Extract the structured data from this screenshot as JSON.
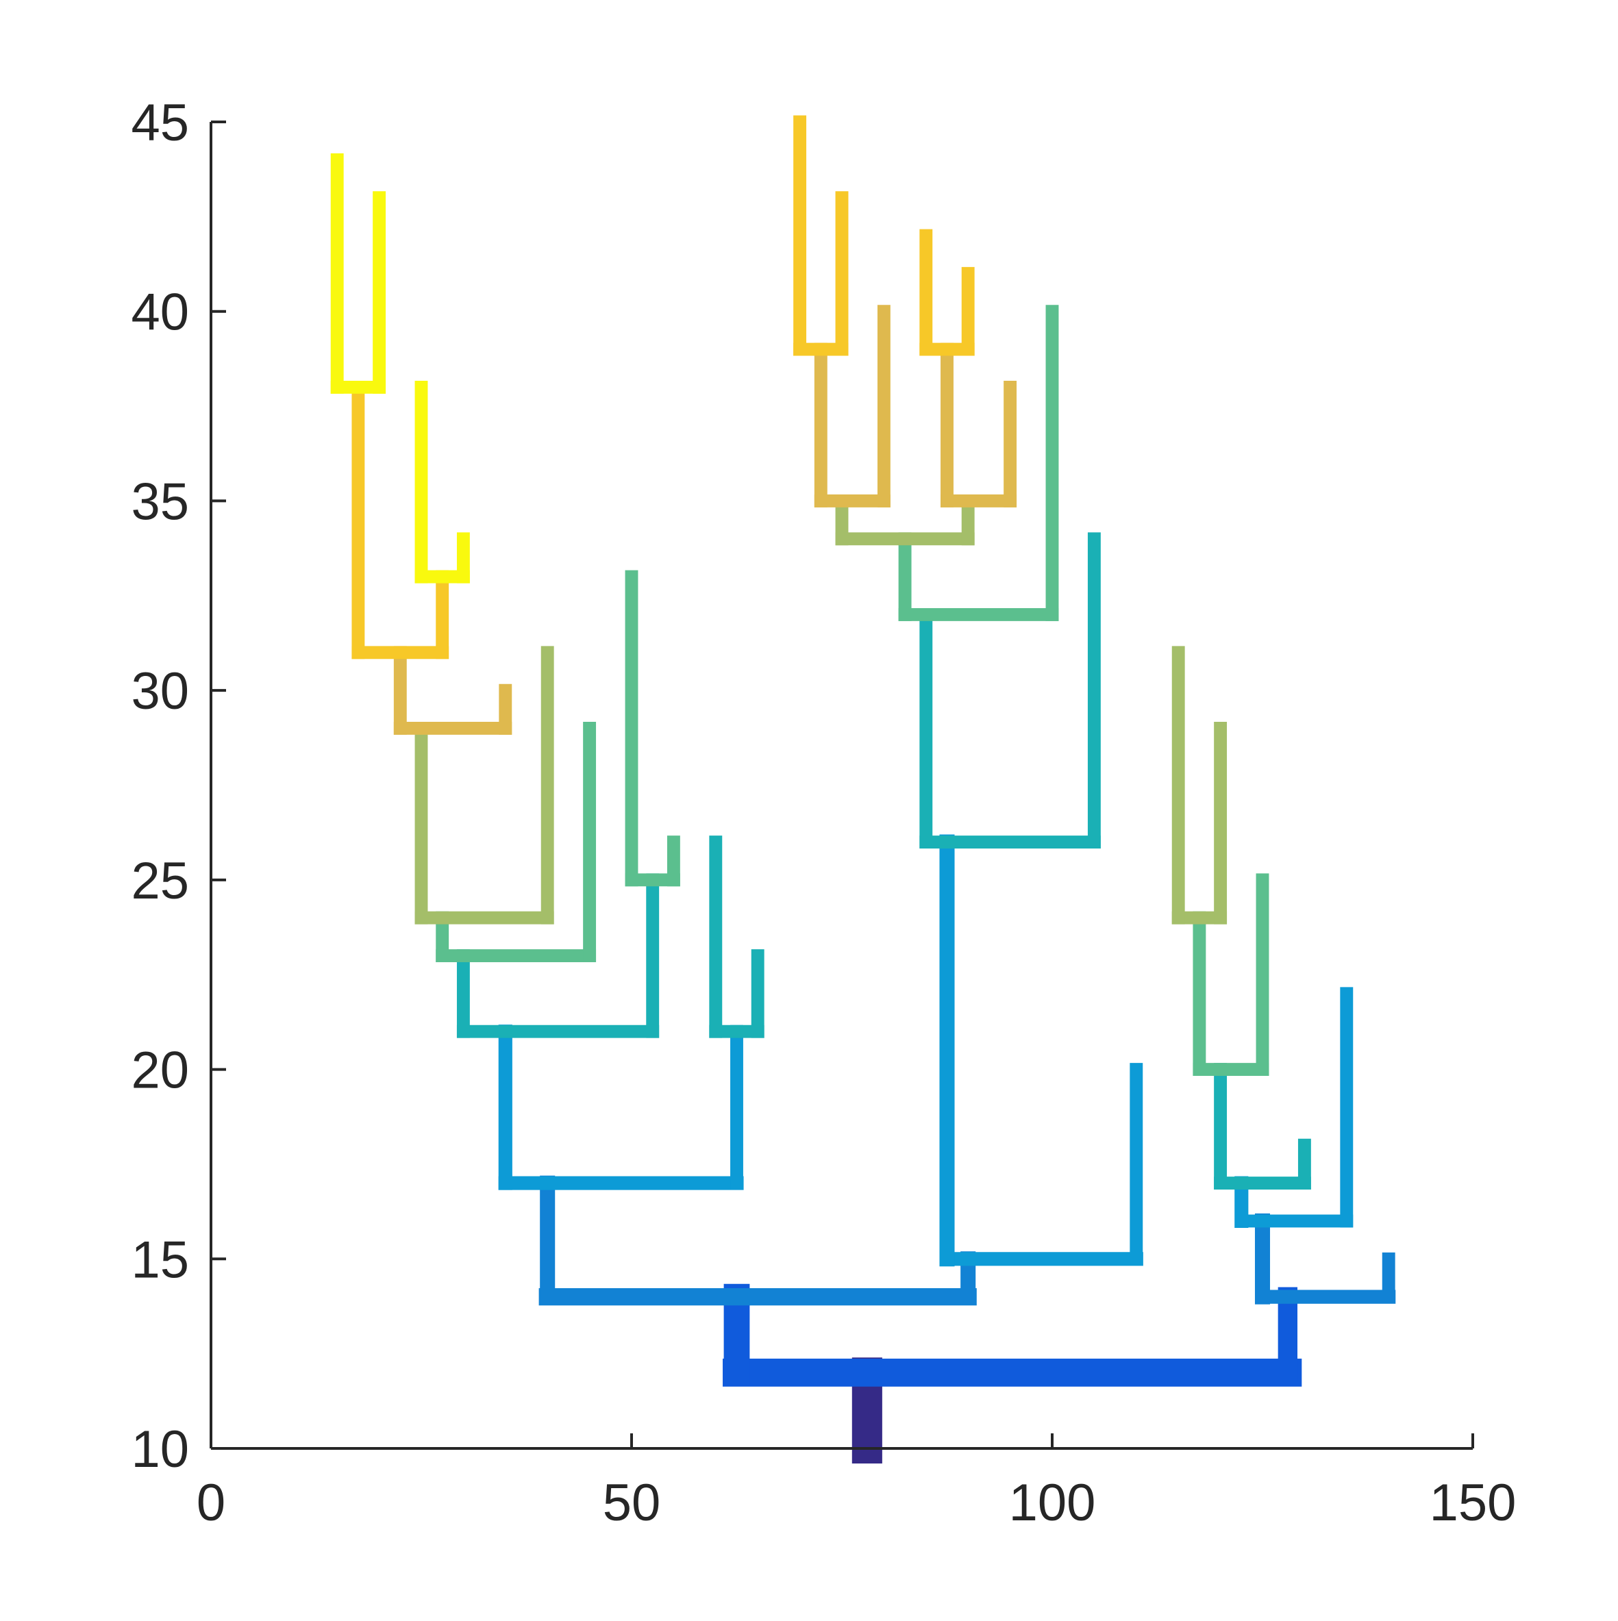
{
  "chart_data": {
    "type": "line",
    "subtype": "branching tree (line segments colored by depth)",
    "title": "",
    "xlabel": "",
    "ylabel": "",
    "xlim": [
      0,
      150
    ],
    "ylim": [
      10,
      45
    ],
    "x_ticks": [
      0,
      50,
      100,
      150
    ],
    "y_ticks": [
      10,
      15,
      20,
      25,
      30,
      35,
      40,
      45
    ],
    "x_tick_labels": [
      "0",
      "50",
      "100",
      "150"
    ],
    "y_tick_labels": [
      "10",
      "15",
      "20",
      "25",
      "30",
      "35",
      "40",
      "45"
    ],
    "grid": false,
    "legend": "none",
    "axis_color": "#262626",
    "segments": [
      {
        "points": [
          [
            78,
            10
          ],
          [
            78,
            12
          ]
        ],
        "width": 7,
        "color": "#352a87"
      },
      {
        "points": [
          [
            62.5,
            12
          ],
          [
            128,
            12
          ]
        ],
        "width": 6.5,
        "color": "#105bdc"
      },
      {
        "points": [
          [
            62.5,
            12
          ],
          [
            62.5,
            14
          ]
        ],
        "width": 6,
        "color": "#105bdc"
      },
      {
        "points": [
          [
            128,
            12
          ],
          [
            128,
            14
          ]
        ],
        "width": 4.5,
        "color": "#105bdc"
      },
      {
        "points": [
          [
            40,
            14
          ],
          [
            90,
            14
          ]
        ],
        "width": 4,
        "color": "#1282d4"
      },
      {
        "points": [
          [
            40,
            14
          ],
          [
            40,
            17
          ]
        ],
        "width": 3.5,
        "color": "#1282d4"
      },
      {
        "points": [
          [
            90,
            14
          ],
          [
            90,
            15
          ]
        ],
        "width": 3.5,
        "color": "#1282d4"
      },
      {
        "points": [
          [
            35,
            17
          ],
          [
            62.5,
            17
          ]
        ],
        "width": 3.2,
        "color": "#0d9bd6"
      },
      {
        "points": [
          [
            35,
            17
          ],
          [
            35,
            21
          ]
        ],
        "width": 3.2,
        "color": "#0d9bd6"
      },
      {
        "points": [
          [
            62.5,
            17
          ],
          [
            62.5,
            21
          ]
        ],
        "width": 3,
        "color": "#0d9bd6"
      },
      {
        "points": [
          [
            30,
            21
          ],
          [
            52.5,
            21
          ]
        ],
        "width": 3,
        "color": "#1ab0b5"
      },
      {
        "points": [
          [
            30,
            21
          ],
          [
            30,
            23
          ]
        ],
        "width": 3,
        "color": "#1ab0b5"
      },
      {
        "points": [
          [
            52.5,
            21
          ],
          [
            52.5,
            25
          ]
        ],
        "width": 3,
        "color": "#1ab0b5"
      },
      {
        "points": [
          [
            27.5,
            23
          ],
          [
            45,
            23
          ]
        ],
        "width": 3,
        "color": "#5bbf8e"
      },
      {
        "points": [
          [
            27.5,
            23
          ],
          [
            27.5,
            24
          ]
        ],
        "width": 3,
        "color": "#5bbf8e"
      },
      {
        "points": [
          [
            45,
            23
          ],
          [
            45,
            29
          ]
        ],
        "width": 3,
        "color": "#5bbf8e"
      },
      {
        "points": [
          [
            25,
            24
          ],
          [
            40,
            24
          ]
        ],
        "width": 3,
        "color": "#a4be69"
      },
      {
        "points": [
          [
            25,
            24
          ],
          [
            25,
            29
          ]
        ],
        "width": 3,
        "color": "#a4be69"
      },
      {
        "points": [
          [
            40,
            24
          ],
          [
            40,
            31
          ]
        ],
        "width": 3,
        "color": "#a4be69"
      },
      {
        "points": [
          [
            22.5,
            29
          ],
          [
            35,
            29
          ]
        ],
        "width": 3,
        "color": "#dfb94e"
      },
      {
        "points": [
          [
            22.5,
            29
          ],
          [
            22.5,
            31
          ]
        ],
        "width": 3,
        "color": "#dfb94e"
      },
      {
        "points": [
          [
            35,
            29
          ],
          [
            35,
            30
          ]
        ],
        "width": 3,
        "color": "#dfb94e"
      },
      {
        "points": [
          [
            17.5,
            31
          ],
          [
            27.5,
            31
          ]
        ],
        "width": 3,
        "color": "#f7c828"
      },
      {
        "points": [
          [
            17.5,
            31
          ],
          [
            17.5,
            38
          ]
        ],
        "width": 3,
        "color": "#f7c828"
      },
      {
        "points": [
          [
            27.5,
            31
          ],
          [
            27.5,
            33
          ]
        ],
        "width": 3,
        "color": "#f7c828"
      },
      {
        "points": [
          [
            15,
            38
          ],
          [
            20,
            38
          ]
        ],
        "width": 3,
        "color": "#f9f90e"
      },
      {
        "points": [
          [
            15,
            38
          ],
          [
            15,
            44
          ]
        ],
        "width": 3,
        "color": "#f9f90e"
      },
      {
        "points": [
          [
            20,
            38
          ],
          [
            20,
            43
          ]
        ],
        "width": 3,
        "color": "#f9f90e"
      },
      {
        "points": [
          [
            25,
            33
          ],
          [
            30,
            33
          ]
        ],
        "width": 3,
        "color": "#f9f90e"
      },
      {
        "points": [
          [
            25,
            33
          ],
          [
            25,
            38
          ]
        ],
        "width": 3,
        "color": "#f9f90e"
      },
      {
        "points": [
          [
            30,
            33
          ],
          [
            30,
            34
          ]
        ],
        "width": 3,
        "color": "#f9f90e"
      },
      {
        "points": [
          [
            50,
            25
          ],
          [
            55,
            25
          ]
        ],
        "width": 3,
        "color": "#5bbf8e"
      },
      {
        "points": [
          [
            50,
            25
          ],
          [
            50,
            33
          ]
        ],
        "width": 3,
        "color": "#5bbf8e"
      },
      {
        "points": [
          [
            55,
            25
          ],
          [
            55,
            26
          ]
        ],
        "width": 3,
        "color": "#5bbf8e"
      },
      {
        "points": [
          [
            60,
            21
          ],
          [
            65,
            21
          ]
        ],
        "width": 3,
        "color": "#1ab0b5"
      },
      {
        "points": [
          [
            60,
            21
          ],
          [
            60,
            26
          ]
        ],
        "width": 3,
        "color": "#1ab0b5"
      },
      {
        "points": [
          [
            65,
            21
          ],
          [
            65,
            23
          ]
        ],
        "width": 3,
        "color": "#1ab0b5"
      },
      {
        "points": [
          [
            87.5,
            15
          ],
          [
            110,
            15
          ]
        ],
        "width": 3.2,
        "color": "#0d9bd6"
      },
      {
        "points": [
          [
            87.5,
            15
          ],
          [
            87.5,
            26
          ]
        ],
        "width": 3.5,
        "color": "#0d9bd6"
      },
      {
        "points": [
          [
            110,
            15
          ],
          [
            110,
            20
          ]
        ],
        "width": 3,
        "color": "#0d9bd6"
      },
      {
        "points": [
          [
            85,
            26
          ],
          [
            105,
            26
          ]
        ],
        "width": 3,
        "color": "#1ab0b5"
      },
      {
        "points": [
          [
            85,
            26
          ],
          [
            85,
            32
          ]
        ],
        "width": 3,
        "color": "#1ab0b5"
      },
      {
        "points": [
          [
            105,
            26
          ],
          [
            105,
            34
          ]
        ],
        "width": 3,
        "color": "#1ab0b5"
      },
      {
        "points": [
          [
            82.5,
            32
          ],
          [
            100,
            32
          ]
        ],
        "width": 3,
        "color": "#5bbf8e"
      },
      {
        "points": [
          [
            82.5,
            32
          ],
          [
            82.5,
            34
          ]
        ],
        "width": 3,
        "color": "#5bbf8e"
      },
      {
        "points": [
          [
            100,
            32
          ],
          [
            100,
            40
          ]
        ],
        "width": 3,
        "color": "#5bbf8e"
      },
      {
        "points": [
          [
            75,
            34
          ],
          [
            90,
            34
          ]
        ],
        "width": 3,
        "color": "#a4be69"
      },
      {
        "points": [
          [
            75,
            34
          ],
          [
            75,
            35
          ]
        ],
        "width": 3,
        "color": "#a4be69"
      },
      {
        "points": [
          [
            90,
            34
          ],
          [
            90,
            35
          ]
        ],
        "width": 3,
        "color": "#a4be69"
      },
      {
        "points": [
          [
            72.5,
            35
          ],
          [
            80,
            35
          ]
        ],
        "width": 3,
        "color": "#dfb94e"
      },
      {
        "points": [
          [
            72.5,
            35
          ],
          [
            72.5,
            39
          ]
        ],
        "width": 3,
        "color": "#dfb94e"
      },
      {
        "points": [
          [
            80,
            35
          ],
          [
            80,
            40
          ]
        ],
        "width": 3,
        "color": "#dfb94e"
      },
      {
        "points": [
          [
            87.5,
            35
          ],
          [
            95,
            35
          ]
        ],
        "width": 3,
        "color": "#dfb94e"
      },
      {
        "points": [
          [
            87.5,
            35
          ],
          [
            87.5,
            39
          ]
        ],
        "width": 3,
        "color": "#dfb94e"
      },
      {
        "points": [
          [
            95,
            35
          ],
          [
            95,
            38
          ]
        ],
        "width": 3,
        "color": "#dfb94e"
      },
      {
        "points": [
          [
            70,
            39
          ],
          [
            75,
            39
          ]
        ],
        "width": 3,
        "color": "#f7c828"
      },
      {
        "points": [
          [
            70,
            39
          ],
          [
            70,
            45
          ]
        ],
        "width": 3,
        "color": "#f7c828"
      },
      {
        "points": [
          [
            75,
            39
          ],
          [
            75,
            43
          ]
        ],
        "width": 3,
        "color": "#f7c828"
      },
      {
        "points": [
          [
            85,
            39
          ],
          [
            90,
            39
          ]
        ],
        "width": 3,
        "color": "#f7c828"
      },
      {
        "points": [
          [
            85,
            39
          ],
          [
            85,
            42
          ]
        ],
        "width": 3,
        "color": "#f7c828"
      },
      {
        "points": [
          [
            90,
            39
          ],
          [
            90,
            41
          ]
        ],
        "width": 3,
        "color": "#f7c828"
      },
      {
        "points": [
          [
            125,
            14
          ],
          [
            140,
            14
          ]
        ],
        "width": 3.2,
        "color": "#1282d4"
      },
      {
        "points": [
          [
            125,
            14
          ],
          [
            125,
            16
          ]
        ],
        "width": 3.5,
        "color": "#1282d4"
      },
      {
        "points": [
          [
            140,
            14
          ],
          [
            140,
            15
          ]
        ],
        "width": 3,
        "color": "#1282d4"
      },
      {
        "points": [
          [
            122.5,
            16
          ],
          [
            135,
            16
          ]
        ],
        "width": 3,
        "color": "#0d9bd6"
      },
      {
        "points": [
          [
            122.5,
            16
          ],
          [
            122.5,
            17
          ]
        ],
        "width": 3.2,
        "color": "#0d9bd6"
      },
      {
        "points": [
          [
            135,
            16
          ],
          [
            135,
            22
          ]
        ],
        "width": 3,
        "color": "#0d9bd6"
      },
      {
        "points": [
          [
            120,
            17
          ],
          [
            130,
            17
          ]
        ],
        "width": 3,
        "color": "#1ab0b5"
      },
      {
        "points": [
          [
            120,
            17
          ],
          [
            120,
            20
          ]
        ],
        "width": 3,
        "color": "#1ab0b5"
      },
      {
        "points": [
          [
            130,
            17
          ],
          [
            130,
            18
          ]
        ],
        "width": 3,
        "color": "#1ab0b5"
      },
      {
        "points": [
          [
            117.5,
            20
          ],
          [
            125,
            20
          ]
        ],
        "width": 3,
        "color": "#5bbf8e"
      },
      {
        "points": [
          [
            117.5,
            20
          ],
          [
            117.5,
            24
          ]
        ],
        "width": 3,
        "color": "#5bbf8e"
      },
      {
        "points": [
          [
            125,
            20
          ],
          [
            125,
            25
          ]
        ],
        "width": 3,
        "color": "#5bbf8e"
      },
      {
        "points": [
          [
            115,
            24
          ],
          [
            120,
            24
          ]
        ],
        "width": 3,
        "color": "#a4be69"
      },
      {
        "points": [
          [
            115,
            24
          ],
          [
            115,
            31
          ]
        ],
        "width": 3,
        "color": "#a4be69"
      },
      {
        "points": [
          [
            120,
            24
          ],
          [
            120,
            29
          ]
        ],
        "width": 3,
        "color": "#a4be69"
      }
    ]
  }
}
